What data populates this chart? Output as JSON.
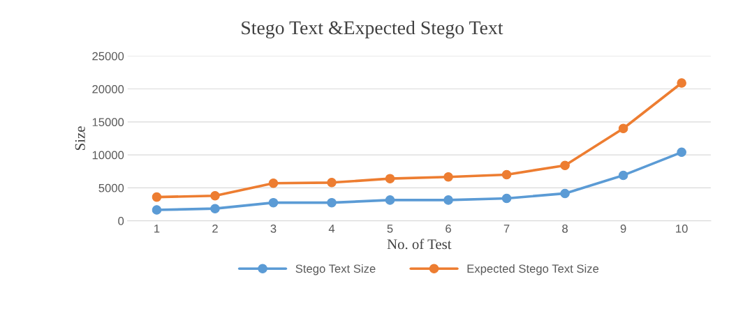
{
  "chart_data": {
    "type": "line",
    "title": "Stego Text &Expected Stego Text",
    "xlabel": "No. of Test",
    "ylabel": "Size",
    "categories": [
      "1",
      "2",
      "3",
      "4",
      "5",
      "6",
      "7",
      "8",
      "9",
      "10"
    ],
    "series": [
      {
        "name": "Stego Text Size",
        "color": "#5b9bd5",
        "values": [
          1650,
          1850,
          2750,
          2750,
          3150,
          3150,
          3400,
          4150,
          6900,
          10400
        ]
      },
      {
        "name": "Expected Stego Text Size",
        "color": "#ed7d31",
        "values": [
          3600,
          3800,
          5700,
          5800,
          6400,
          6650,
          7000,
          8400,
          14000,
          20900
        ]
      }
    ],
    "ylim": [
      0,
      25000
    ],
    "yticks": [
      0,
      5000,
      10000,
      15000,
      20000,
      25000
    ],
    "grid": "y",
    "legend": "bottom",
    "marker": "circle",
    "line_style": "solid"
  }
}
